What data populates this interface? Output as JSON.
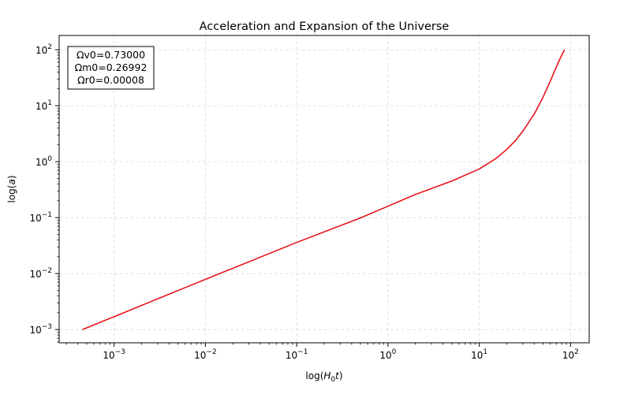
{
  "chart_data": {
    "type": "line",
    "title": "Acceleration and Expansion of the Universe",
    "xlabel_main": "log(",
    "xlabel_var": "H",
    "xlabel_sub": "0",
    "xlabel_var2": "t",
    "xlabel_end": ")",
    "ylabel_main": "log(",
    "ylabel_var": "a",
    "ylabel_end": ")",
    "x_scale": "log",
    "y_scale": "log",
    "xlim": [
      0.00025,
      160
    ],
    "ylim": [
      0.00058,
      180
    ],
    "x_tick_values": [
      0.001,
      0.01,
      0.1,
      1,
      10,
      100
    ],
    "x_tick_labels": [
      {
        "base": "10",
        "exp": "−3"
      },
      {
        "base": "10",
        "exp": "−2"
      },
      {
        "base": "10",
        "exp": "−1"
      },
      {
        "base": "10",
        "exp": "0"
      },
      {
        "base": "10",
        "exp": "1"
      },
      {
        "base": "10",
        "exp": "2"
      }
    ],
    "y_tick_values": [
      0.001,
      0.01,
      0.1,
      1,
      10,
      100
    ],
    "y_tick_labels": [
      {
        "base": "10",
        "exp": "−3"
      },
      {
        "base": "10",
        "exp": "−2"
      },
      {
        "base": "10",
        "exp": "−1"
      },
      {
        "base": "10",
        "exp": "0"
      },
      {
        "base": "10",
        "exp": "1"
      },
      {
        "base": "10",
        "exp": "2"
      }
    ],
    "grid": true,
    "legend_position": "top-left",
    "annotation_lines": [
      "Ωv0=0.73000",
      "Ωm0=0.26992",
      "Ωr0=0.00008"
    ],
    "series": [
      {
        "color": "#e8141b",
        "x": [
          0.00045,
          0.001,
          0.01,
          0.1,
          0.5,
          1.0,
          2.0,
          5.0,
          10.0,
          15.0,
          20.0,
          25.0,
          30.0,
          40.0,
          50.0,
          60.0,
          70.0,
          80.0,
          86.0
        ],
        "y": [
          0.001,
          0.0017,
          0.0079,
          0.036,
          0.099,
          0.16,
          0.26,
          0.45,
          0.74,
          1.12,
          1.65,
          2.4,
          3.5,
          7.1,
          14.2,
          27.5,
          50.0,
          80.0,
          100.0
        ]
      }
    ]
  }
}
